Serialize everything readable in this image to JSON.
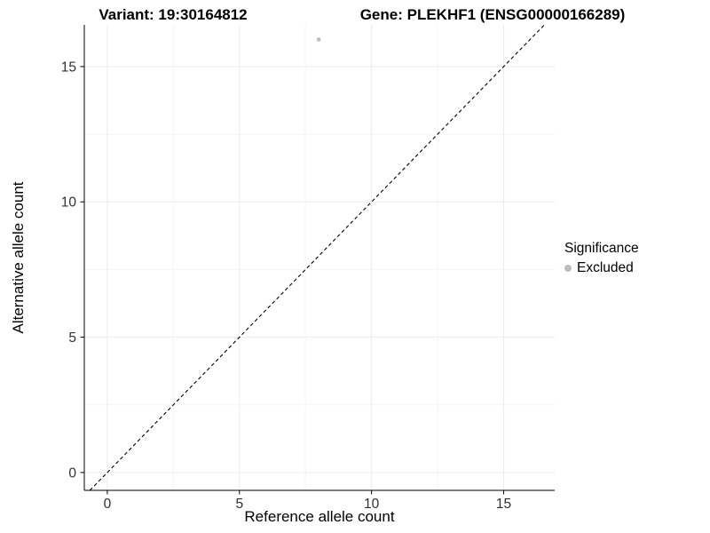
{
  "chart_data": {
    "type": "scatter",
    "title_left": "Variant: 19:30164812",
    "title_right": "Gene: PLEKHF1 (ENSG00000166289)",
    "xlabel": "Reference allele count",
    "ylabel": "Alternative allele count",
    "xlim": [
      -0.87,
      16.93
    ],
    "ylim": [
      -0.66,
      16.54
    ],
    "xticks": [
      0,
      5,
      10,
      15
    ],
    "yticks": [
      0,
      5,
      10,
      15
    ],
    "minor_xticks": [
      2.5,
      7.5,
      12.5
    ],
    "minor_yticks": [
      2.5,
      7.5,
      12.5
    ],
    "grid": true,
    "reference_line": {
      "type": "identity",
      "style": "dashed",
      "color": "#000000"
    },
    "series": [
      {
        "name": "Excluded",
        "color": "#bdbdbd",
        "marker": "circle",
        "points": [
          [
            8,
            16
          ]
        ]
      }
    ],
    "legend": {
      "title": "Significance",
      "position": "right",
      "entries": [
        {
          "label": "Excluded",
          "color": "#bdbdbd"
        }
      ]
    }
  },
  "style": {
    "panel_background": "#ffffff",
    "axis_line_color": "#000000",
    "tick_label_color": "#303030",
    "grid_major_color": "#ececec",
    "grid_minor_color": "#f5f5f5",
    "point_radius": 2.3,
    "tick_length": 4.5
  }
}
